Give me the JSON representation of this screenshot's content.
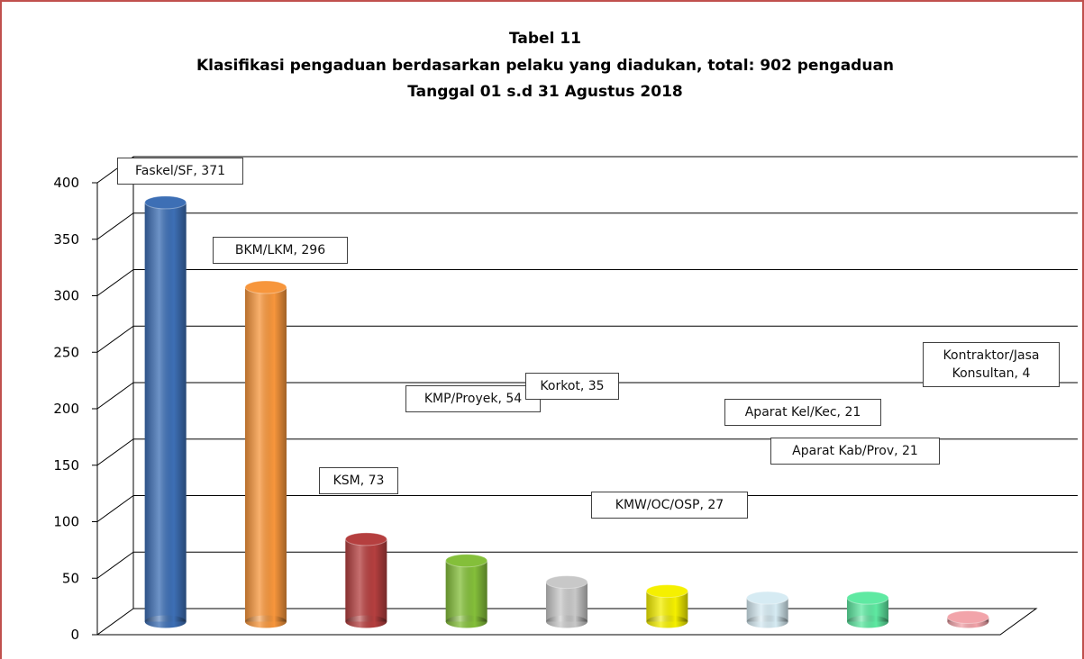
{
  "chart_data": {
    "type": "bar3d",
    "title": "Tabel 11",
    "subtitle": [
      "Klasifikasi pengaduan berdasarkan pelaku yang diadukan, total: 902  pengaduan",
      "Tanggal  01 s.d 31 Agustus 2018"
    ],
    "categories": [
      "Faskel/SF",
      "BKM/LKM",
      "KSM",
      "KMP/Proyek",
      "Korkot",
      "KMW/OC/OSP",
      "Aparat Kel/Kec",
      "Aparat Kab/Prov",
      "Kontraktor/Jasa Konsultan"
    ],
    "values": [
      371,
      296,
      73,
      54,
      35,
      27,
      21,
      21,
      4
    ],
    "value_labels": [
      "Faskel/SF, 371",
      "BKM/LKM, 296",
      "KSM, 73",
      "KMP/Proyek, 54",
      "Korkot, 35",
      "KMW/OC/OSP, 27",
      "Aparat Kel/Kec, 21",
      "Aparat Kab/Prov, 21",
      "Kontraktor/Jasa Konsultan, 4"
    ],
    "colors": [
      "#3d6fb5",
      "#f7963c",
      "#b53f3f",
      "#84bf3a",
      "#c8c8c8",
      "#f5f000",
      "#d6ebf3",
      "#5fe9a2",
      "#f2a4aa"
    ],
    "ylim": [
      0,
      400
    ],
    "yticks": [
      0,
      50,
      100,
      150,
      200,
      250,
      300,
      350,
      400
    ],
    "grid": true
  }
}
